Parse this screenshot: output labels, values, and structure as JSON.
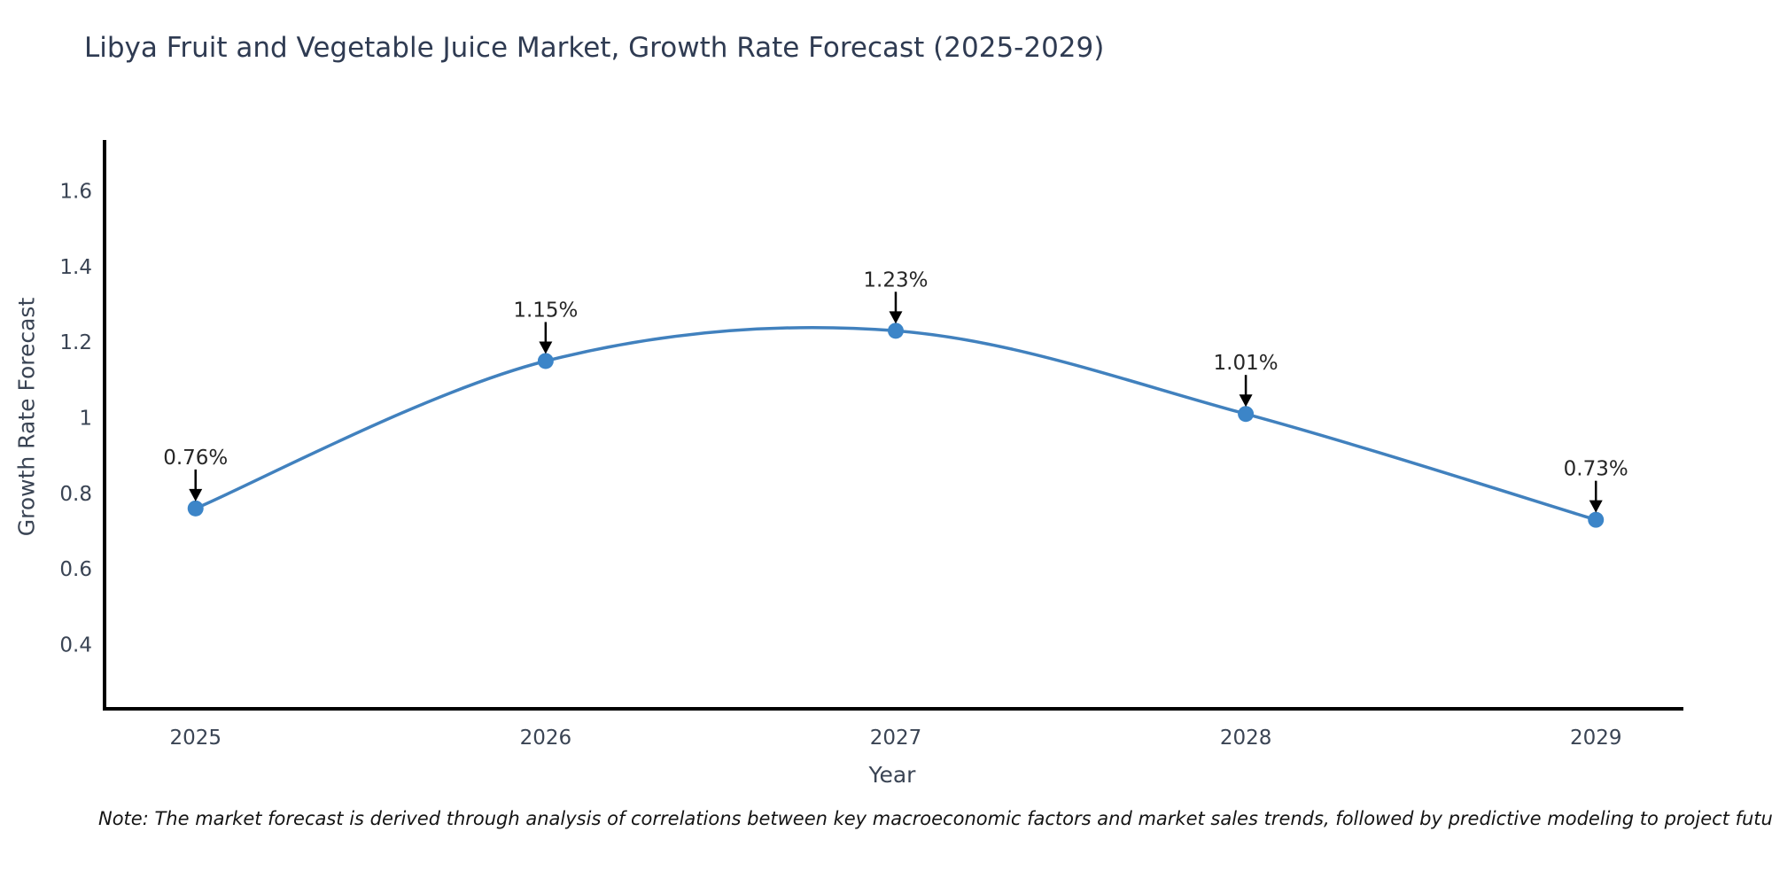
{
  "title": "Libya Fruit and Vegetable Juice Market, Growth Rate Forecast (2025-2029)",
  "note": "Note: The market forecast is derived through analysis of correlations between key macroeconomic factors and market sales trends, followed by predictive modeling to project future sales",
  "chart_data": {
    "type": "line",
    "title": "Libya Fruit and Vegetable Juice Market, Growth Rate Forecast (2025-2029)",
    "xlabel": "Year",
    "ylabel": "Growth Rate Forecast",
    "x": [
      2025,
      2026,
      2027,
      2028,
      2029
    ],
    "series": [
      {
        "name": "Growth Rate Forecast",
        "values": [
          0.76,
          1.15,
          1.23,
          1.01,
          0.73
        ]
      }
    ],
    "point_labels": [
      "0.76%",
      "1.15%",
      "1.23%",
      "1.01%",
      "0.73%"
    ],
    "xticks": [
      "2025",
      "2026",
      "2027",
      "2028",
      "2029"
    ],
    "yticks": [
      "0.4",
      "0.6",
      "0.8",
      "1",
      "1.2",
      "1.4",
      "1.6"
    ],
    "ytick_values": [
      0.4,
      0.6,
      0.8,
      1.0,
      1.2,
      1.4,
      1.6
    ],
    "xlim": [
      2024.74,
      2029.25
    ],
    "ylim": [
      0.23,
      1.73
    ],
    "grid": false,
    "legend": "none",
    "curve": "smooth-spline",
    "colors": {
      "line": "#4181be",
      "marker": "#3c85c8",
      "axis_spine": "#000000",
      "tick_label": "#3a4454",
      "annotation_text": "#262626",
      "annotation_arrow": "#000000",
      "title": "#2f3b52",
      "background": "#ffffff"
    }
  }
}
